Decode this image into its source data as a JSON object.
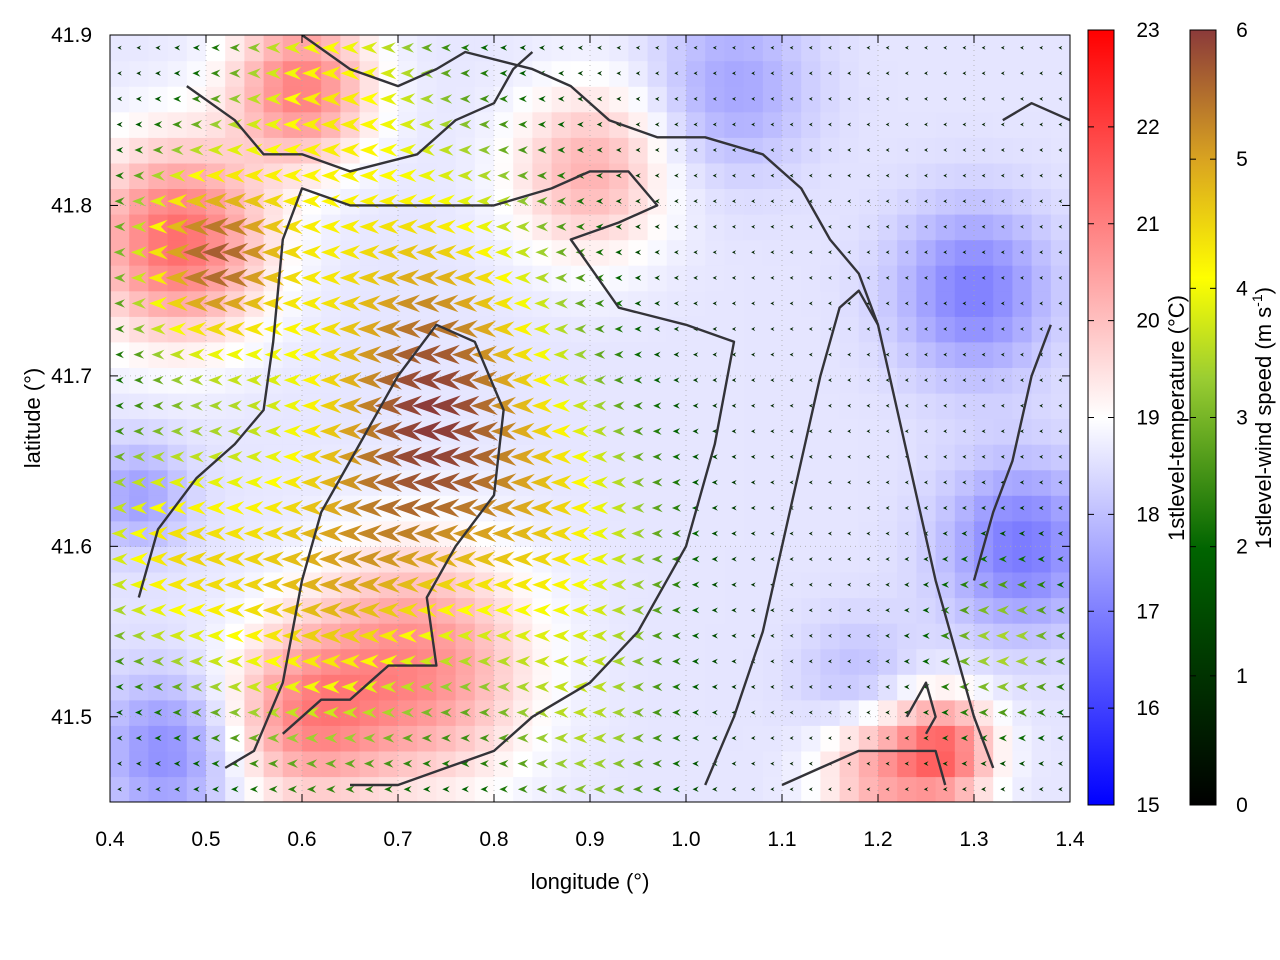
{
  "chart_data": {
    "type": "heatmap",
    "title": "",
    "xlabel": "longitude (°)",
    "ylabel": "latitude (°)",
    "xlim": [
      0.4,
      1.4
    ],
    "ylim": [
      41.45,
      41.9
    ],
    "x_ticks": [
      "0.4",
      "0.5",
      "0.6",
      "0.7",
      "0.8",
      "0.9",
      "1.0",
      "1.1",
      "1.2",
      "1.3",
      "1.4"
    ],
    "y_ticks": [
      "41.5",
      "41.6",
      "41.7",
      "41.8",
      "41.9"
    ],
    "temperature_colorbar": {
      "label": "1stlevel-temperature (°C)",
      "range": [
        15,
        23
      ],
      "ticks": [
        "15",
        "16",
        "17",
        "18",
        "19",
        "20",
        "21",
        "22",
        "23"
      ],
      "colors": [
        "#0000ff",
        "#ffffff",
        "#ff0000"
      ]
    },
    "wind_colorbar": {
      "label_main": "1stlevel-wind speed (m s",
      "label_sup": "-1",
      "label_end": ")",
      "range": [
        0,
        6
      ],
      "ticks": [
        "0",
        "1",
        "2",
        "3",
        "4",
        "5",
        "6"
      ],
      "colors": [
        "#000000",
        "#006400",
        "#9acd32",
        "#ffff00",
        "#daa520",
        "#8b3a3a"
      ]
    },
    "temperature_field": {
      "background_c": 18.6,
      "warm_zones": [
        {
          "lon": 0.47,
          "lat": 41.78,
          "temp_c": 21.3,
          "radius_deg": 0.09
        },
        {
          "lon": 0.6,
          "lat": 41.87,
          "temp_c": 21.0,
          "radius_deg": 0.07
        },
        {
          "lon": 0.72,
          "lat": 41.53,
          "temp_c": 20.8,
          "radius_deg": 0.11
        },
        {
          "lon": 0.6,
          "lat": 41.5,
          "temp_c": 20.5,
          "radius_deg": 0.08
        },
        {
          "lon": 0.9,
          "lat": 41.82,
          "temp_c": 20.2,
          "radius_deg": 0.08
        },
        {
          "lon": 1.27,
          "lat": 41.48,
          "temp_c": 21.2,
          "radius_deg": 0.05
        },
        {
          "lon": 1.2,
          "lat": 41.47,
          "temp_c": 20.3,
          "radius_deg": 0.06
        }
      ],
      "cool_zones": [
        {
          "lon": 1.35,
          "lat": 41.6,
          "temp_c": 16.9,
          "radius_deg": 0.08
        },
        {
          "lon": 1.3,
          "lat": 41.75,
          "temp_c": 17.0,
          "radius_deg": 0.08
        },
        {
          "lon": 0.46,
          "lat": 41.48,
          "temp_c": 17.2,
          "radius_deg": 0.07
        },
        {
          "lon": 1.05,
          "lat": 41.87,
          "temp_c": 17.6,
          "radius_deg": 0.08
        },
        {
          "lon": 0.43,
          "lat": 41.63,
          "temp_c": 17.5,
          "radius_deg": 0.05
        },
        {
          "lon": 1.18,
          "lat": 41.52,
          "temp_c": 17.9,
          "radius_deg": 0.06
        }
      ]
    },
    "wind_field": {
      "direction": "westward",
      "grid_step_lon": 0.02,
      "grid_step_lat": 0.015,
      "background_speed_ms": 0.4,
      "jets": [
        {
          "lon": 0.5,
          "lat": 41.77,
          "speed_ms": 4.6,
          "radius_deg": 0.09
        },
        {
          "lon": 0.74,
          "lat": 41.67,
          "speed_ms": 3.6,
          "radius_deg": 0.14
        },
        {
          "lon": 0.62,
          "lat": 41.56,
          "speed_ms": 3.4,
          "radius_deg": 0.14
        },
        {
          "lon": 0.72,
          "lat": 41.77,
          "speed_ms": 2.6,
          "radius_deg": 0.16
        },
        {
          "lon": 0.45,
          "lat": 41.6,
          "speed_ms": 2.8,
          "radius_deg": 0.1
        },
        {
          "lon": 0.88,
          "lat": 41.6,
          "speed_ms": 2.4,
          "radius_deg": 0.12
        },
        {
          "lon": 0.62,
          "lat": 41.88,
          "speed_ms": 2.6,
          "radius_deg": 0.1
        },
        {
          "lon": 1.33,
          "lat": 41.54,
          "speed_ms": 2.2,
          "radius_deg": 0.08
        },
        {
          "lon": 0.9,
          "lat": 41.48,
          "speed_ms": 1.8,
          "radius_deg": 0.1
        }
      ]
    },
    "contours": [
      [
        [
          0.52,
          41.47
        ],
        [
          0.55,
          41.48
        ],
        [
          0.58,
          41.52
        ],
        [
          0.6,
          41.58
        ],
        [
          0.62,
          41.62
        ],
        [
          0.66,
          41.66
        ],
        [
          0.7,
          41.7
        ],
        [
          0.74,
          41.73
        ],
        [
          0.78,
          41.72
        ],
        [
          0.81,
          41.68
        ],
        [
          0.8,
          41.63
        ],
        [
          0.76,
          41.6
        ],
        [
          0.73,
          41.57
        ],
        [
          0.74,
          41.53
        ],
        [
          0.69,
          41.53
        ],
        [
          0.65,
          41.51
        ],
        [
          0.62,
          41.51
        ],
        [
          0.58,
          41.49
        ]
      ],
      [
        [
          0.43,
          41.57
        ],
        [
          0.45,
          41.61
        ],
        [
          0.49,
          41.64
        ],
        [
          0.53,
          41.66
        ],
        [
          0.56,
          41.68
        ],
        [
          0.57,
          41.72
        ],
        [
          0.58,
          41.78
        ],
        [
          0.6,
          41.81
        ],
        [
          0.65,
          41.8
        ],
        [
          0.72,
          41.8
        ],
        [
          0.8,
          41.8
        ],
        [
          0.86,
          41.81
        ],
        [
          0.9,
          41.82
        ],
        [
          0.94,
          41.82
        ],
        [
          0.97,
          41.8
        ],
        [
          0.93,
          41.79
        ],
        [
          0.88,
          41.78
        ],
        [
          0.93,
          41.74
        ],
        [
          1.0,
          41.73
        ],
        [
          1.05,
          41.72
        ],
        [
          1.03,
          41.66
        ],
        [
          1.0,
          41.6
        ],
        [
          0.95,
          41.55
        ],
        [
          0.9,
          41.52
        ],
        [
          0.84,
          41.5
        ],
        [
          0.8,
          41.48
        ],
        [
          0.75,
          41.47
        ],
        [
          0.7,
          41.46
        ],
        [
          0.65,
          41.46
        ]
      ],
      [
        [
          0.48,
          41.87
        ],
        [
          0.53,
          41.85
        ],
        [
          0.56,
          41.83
        ],
        [
          0.6,
          41.83
        ],
        [
          0.65,
          41.82
        ],
        [
          0.72,
          41.83
        ],
        [
          0.76,
          41.85
        ],
        [
          0.8,
          41.86
        ],
        [
          0.82,
          41.88
        ],
        [
          0.84,
          41.89
        ]
      ],
      [
        [
          0.6,
          41.9
        ],
        [
          0.65,
          41.88
        ],
        [
          0.7,
          41.87
        ],
        [
          0.74,
          41.88
        ],
        [
          0.77,
          41.89
        ],
        [
          0.84,
          41.88
        ],
        [
          0.88,
          41.87
        ],
        [
          0.92,
          41.85
        ],
        [
          0.97,
          41.84
        ],
        [
          1.02,
          41.84
        ],
        [
          1.08,
          41.83
        ],
        [
          1.12,
          41.81
        ],
        [
          1.15,
          41.78
        ],
        [
          1.18,
          41.76
        ],
        [
          1.2,
          41.73
        ],
        [
          1.22,
          41.68
        ],
        [
          1.24,
          41.63
        ],
        [
          1.26,
          41.58
        ],
        [
          1.28,
          41.54
        ],
        [
          1.3,
          41.5
        ],
        [
          1.32,
          41.47
        ]
      ],
      [
        [
          1.02,
          41.46
        ],
        [
          1.05,
          41.5
        ],
        [
          1.08,
          41.55
        ],
        [
          1.1,
          41.6
        ],
        [
          1.12,
          41.65
        ],
        [
          1.14,
          41.7
        ],
        [
          1.16,
          41.74
        ],
        [
          1.18,
          41.75
        ],
        [
          1.2,
          41.73
        ]
      ],
      [
        [
          1.1,
          41.46
        ],
        [
          1.14,
          41.47
        ],
        [
          1.18,
          41.48
        ],
        [
          1.22,
          41.48
        ],
        [
          1.26,
          41.48
        ],
        [
          1.27,
          41.46
        ]
      ],
      [
        [
          1.23,
          41.5
        ],
        [
          1.25,
          41.52
        ],
        [
          1.26,
          41.5
        ],
        [
          1.25,
          41.49
        ]
      ],
      [
        [
          1.33,
          41.85
        ],
        [
          1.36,
          41.86
        ],
        [
          1.4,
          41.85
        ]
      ],
      [
        [
          1.38,
          41.73
        ],
        [
          1.36,
          41.7
        ],
        [
          1.34,
          41.65
        ],
        [
          1.32,
          41.62
        ],
        [
          1.3,
          41.58
        ]
      ]
    ]
  }
}
